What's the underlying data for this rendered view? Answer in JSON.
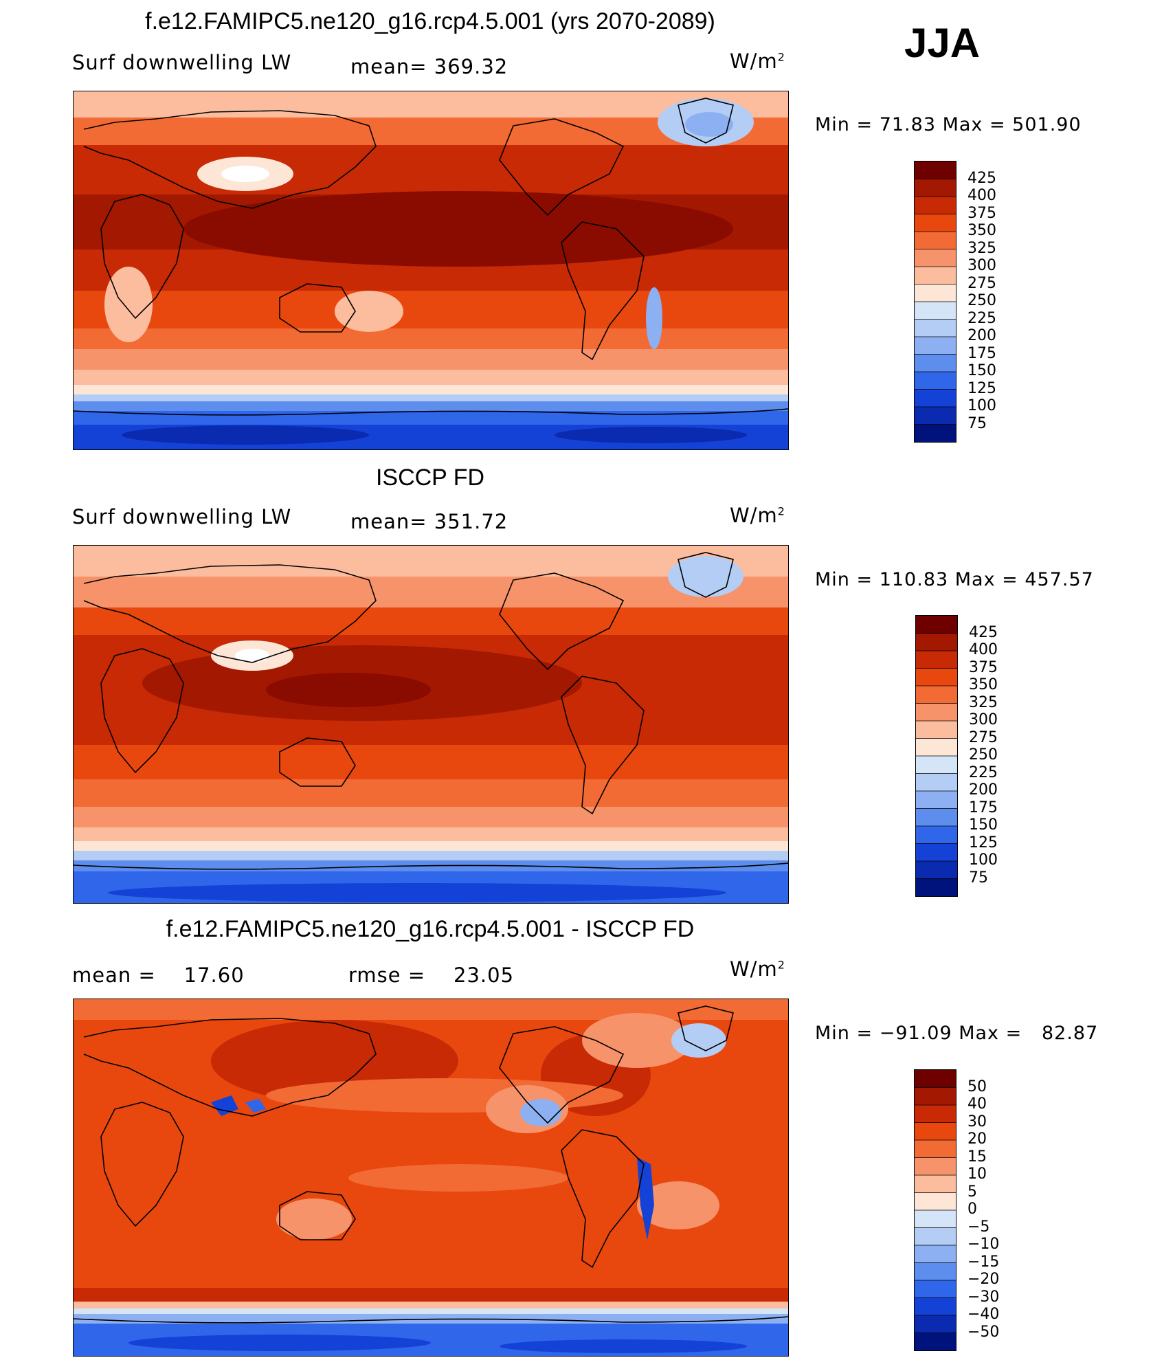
{
  "season": "JJA",
  "panels": [
    {
      "id": "model",
      "title": "f.e12.FAMIPC5.ne120_g16.rcp4.5.001 (yrs 2070-2089)",
      "left_label": "Surf downwelling LW",
      "center_label": "mean= 369.32",
      "units": "W/m",
      "units_sup": "2",
      "minmax": "Min =   71.83 Max = 501.90",
      "colorbar_labels": [
        "425",
        "400",
        "375",
        "350",
        "325",
        "300",
        "275",
        "250",
        "225",
        "200",
        "175",
        "150",
        "125",
        "100",
        "75"
      ],
      "colors": [
        "#6e0000",
        "#a31800",
        "#c72a05",
        "#e8480e",
        "#f26a34",
        "#f7936a",
        "#fbbd9e",
        "#fde6d5",
        "#d5e5f8",
        "#b3cdf5",
        "#8cb0f1",
        "#5d8ded",
        "#2f66ea",
        "#1442d6",
        "#0a2bb0",
        "#00137d"
      ]
    },
    {
      "id": "obs",
      "title": "ISCCP FD",
      "left_label": "Surf downwelling LW",
      "center_label": "mean= 351.72",
      "units": "W/m",
      "units_sup": "2",
      "minmax": "Min = 110.83 Max = 457.57",
      "colorbar_labels": [
        "425",
        "400",
        "375",
        "350",
        "325",
        "300",
        "275",
        "250",
        "225",
        "200",
        "175",
        "150",
        "125",
        "100",
        "75"
      ],
      "colors": [
        "#6e0000",
        "#a31800",
        "#c72a05",
        "#e8480e",
        "#f26a34",
        "#f7936a",
        "#fbbd9e",
        "#fde6d5",
        "#d5e5f8",
        "#b3cdf5",
        "#8cb0f1",
        "#5d8ded",
        "#2f66ea",
        "#1442d6",
        "#0a2bb0",
        "#00137d"
      ]
    },
    {
      "id": "diff",
      "title": "f.e12.FAMIPC5.ne120_g16.rcp4.5.001 - ISCCP FD",
      "left_label": "mean =    17.60",
      "center_label": "rmse =    23.05",
      "units": "W/m",
      "units_sup": "2",
      "minmax": "Min = −91.09 Max =   82.87",
      "colorbar_labels": [
        "50",
        "40",
        "30",
        "20",
        "15",
        "10",
        "5",
        "0",
        "−5",
        "−10",
        "−15",
        "−20",
        "−30",
        "−40",
        "−50"
      ],
      "colors": [
        "#6e0000",
        "#a31800",
        "#c72a05",
        "#e8480e",
        "#f26a34",
        "#f7936a",
        "#fbbd9e",
        "#fde6d5",
        "#d5e5f8",
        "#b3cdf5",
        "#8cb0f1",
        "#5d8ded",
        "#2f66ea",
        "#1442d6",
        "#0a2bb0",
        "#00137d"
      ]
    }
  ]
}
